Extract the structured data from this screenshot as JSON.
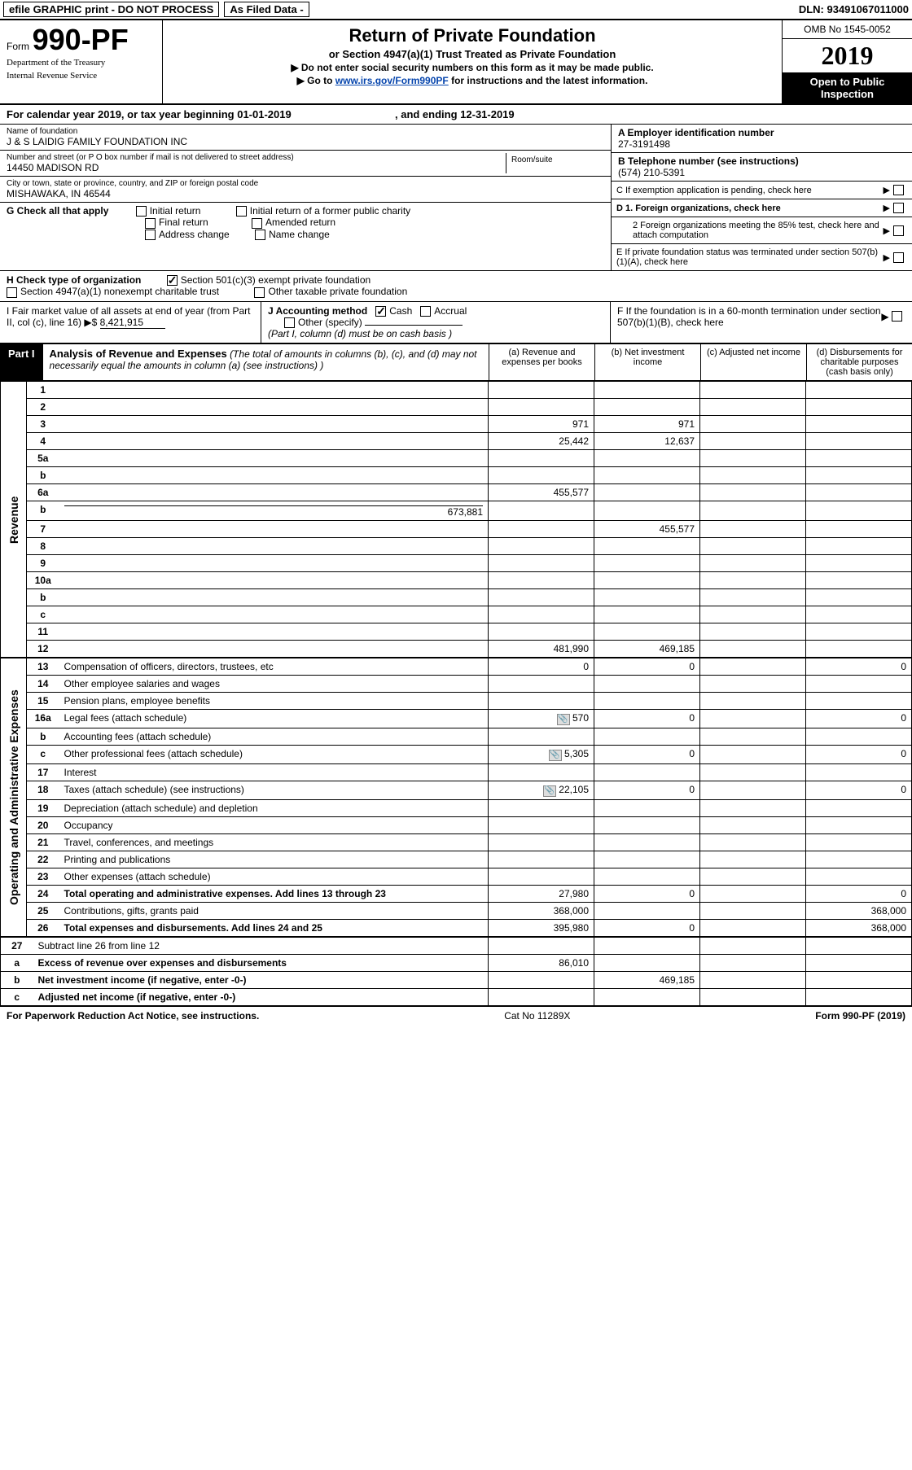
{
  "top_bar": {
    "left": "efile GRAPHIC print - DO NOT PROCESS",
    "mid": "As Filed Data -",
    "dln": "DLN: 93491067011000"
  },
  "header": {
    "form_prefix": "Form",
    "form_number": "990-PF",
    "dept1": "Department of the Treasury",
    "dept2": "Internal Revenue Service",
    "title": "Return of Private Foundation",
    "subtitle": "or Section 4947(a)(1) Trust Treated as Private Foundation",
    "instr1": "▶ Do not enter social security numbers on this form as it may be made public.",
    "instr2_pre": "▶ Go to ",
    "instr2_link": "www.irs.gov/Form990PF",
    "instr2_post": " for instructions and the latest information.",
    "omb": "OMB No 1545-0052",
    "year": "2019",
    "open": "Open to Public Inspection"
  },
  "cal": {
    "text_a": "For calendar year 2019, or tax year beginning 01-01-2019",
    "text_b": ", and ending 12-31-2019"
  },
  "org": {
    "name_lbl": "Name of foundation",
    "name": "J & S LAIDIG FAMILY FOUNDATION INC",
    "addr_lbl": "Number and street (or P O  box number if mail is not delivered to street address)",
    "addr": "14450 MADISON RD",
    "room_lbl": "Room/suite",
    "city_lbl": "City or town, state or province, country, and ZIP or foreign postal code",
    "city": "MISHAWAKA, IN  46544"
  },
  "right_box": {
    "a_lbl": "A Employer identification number",
    "a_val": "27-3191498",
    "b_lbl": "B Telephone number (see instructions)",
    "b_val": "(574) 210-5391",
    "c_txt": "C If exemption application is pending, check here",
    "d1": "D 1. Foreign organizations, check here",
    "d2": "2 Foreign organizations meeting the 85% test, check here and attach computation",
    "e": "E If private foundation status was terminated under section 507(b)(1)(A), check here",
    "f": "F If the foundation is in a 60-month termination under section 507(b)(1)(B), check here"
  },
  "checks": {
    "g_lbl": "G Check all that apply",
    "g_opts": [
      "Initial return",
      "Initial return of a former public charity",
      "Final return",
      "Amended return",
      "Address change",
      "Name change"
    ],
    "h_lbl": "H Check type of organization",
    "h_opt1": "Section 501(c)(3) exempt private foundation",
    "h_opt2": "Section 4947(a)(1) nonexempt charitable trust",
    "h_opt3": "Other taxable private foundation",
    "i_lbl": "I Fair market value of all assets at end of year (from Part II, col  (c), line 16)  ▶$",
    "i_val": "8,421,915",
    "j_lbl": "J Accounting method",
    "j_cash": "Cash",
    "j_accrual": "Accrual",
    "j_other": "Other (specify)",
    "j_note": "(Part I, column (d) must be on cash basis )"
  },
  "part1": {
    "badge": "Part I",
    "title": "Analysis of Revenue and Expenses",
    "note": "(The total of amounts in columns (b), (c), and (d) may not necessarily equal the amounts in column (a) (see instructions) )",
    "col_a": "(a)   Revenue and expenses per books",
    "col_b": "(b)   Net investment income",
    "col_c": "(c)  Adjusted net income",
    "col_d": "(d)  Disbursements for charitable purposes (cash basis only)"
  },
  "side_labels": {
    "rev": "Revenue",
    "exp": "Operating and Administrative Expenses"
  },
  "rows": [
    {
      "n": "1",
      "d": "",
      "a": "",
      "b": "",
      "c": ""
    },
    {
      "n": "2",
      "d": "",
      "a": "",
      "b": "",
      "c": ""
    },
    {
      "n": "3",
      "d": "",
      "a": "971",
      "b": "971",
      "c": ""
    },
    {
      "n": "4",
      "d": "",
      "a": "25,442",
      "b": "12,637",
      "c": ""
    },
    {
      "n": "5a",
      "d": "",
      "a": "",
      "b": "",
      "c": ""
    },
    {
      "n": "b",
      "d": "",
      "a": "",
      "b": "",
      "c": ""
    },
    {
      "n": "6a",
      "d": "",
      "a": "455,577",
      "b": "",
      "c": ""
    },
    {
      "n": "b",
      "d": "",
      "extra": "673,881",
      "a": "",
      "b": "",
      "c": ""
    },
    {
      "n": "7",
      "d": "",
      "a": "",
      "b": "455,577",
      "c": ""
    },
    {
      "n": "8",
      "d": "",
      "a": "",
      "b": "",
      "c": ""
    },
    {
      "n": "9",
      "d": "",
      "a": "",
      "b": "",
      "c": ""
    },
    {
      "n": "10a",
      "d": "",
      "a": "",
      "b": "",
      "c": ""
    },
    {
      "n": "b",
      "d": "",
      "a": "",
      "b": "",
      "c": ""
    },
    {
      "n": "c",
      "d": "",
      "a": "",
      "b": "",
      "c": ""
    },
    {
      "n": "11",
      "d": "",
      "a": "",
      "b": "",
      "c": ""
    },
    {
      "n": "12",
      "d": "",
      "bold": true,
      "a": "481,990",
      "b": "469,185",
      "c": ""
    }
  ],
  "exp_rows": [
    {
      "n": "13",
      "d": "0",
      "a": "0",
      "b": "0",
      "c": ""
    },
    {
      "n": "14",
      "d": "",
      "a": "",
      "b": "",
      "c": ""
    },
    {
      "n": "15",
      "d": "",
      "a": "",
      "b": "",
      "c": ""
    },
    {
      "n": "16a",
      "d": "0",
      "icon": true,
      "a": "570",
      "b": "0",
      "c": ""
    },
    {
      "n": "b",
      "d": "",
      "a": "",
      "b": "",
      "c": ""
    },
    {
      "n": "c",
      "d": "0",
      "icon": true,
      "a": "5,305",
      "b": "0",
      "c": ""
    },
    {
      "n": "17",
      "d": "",
      "a": "",
      "b": "",
      "c": ""
    },
    {
      "n": "18",
      "d": "0",
      "icon": true,
      "a": "22,105",
      "b": "0",
      "c": ""
    },
    {
      "n": "19",
      "d": "",
      "a": "",
      "b": "",
      "c": ""
    },
    {
      "n": "20",
      "d": "",
      "a": "",
      "b": "",
      "c": ""
    },
    {
      "n": "21",
      "d": "",
      "a": "",
      "b": "",
      "c": ""
    },
    {
      "n": "22",
      "d": "",
      "a": "",
      "b": "",
      "c": ""
    },
    {
      "n": "23",
      "d": "",
      "a": "",
      "b": "",
      "c": ""
    },
    {
      "n": "24",
      "d": "0",
      "bold": true,
      "a": "27,980",
      "b": "0",
      "c": ""
    },
    {
      "n": "25",
      "d": "368,000",
      "a": "368,000",
      "b": "",
      "c": ""
    },
    {
      "n": "26",
      "d": "368,000",
      "bold": true,
      "a": "395,980",
      "b": "0",
      "c": ""
    }
  ],
  "line27": [
    {
      "n": "27",
      "d": "",
      "a": "",
      "b": "",
      "c": ""
    },
    {
      "n": "a",
      "d": "",
      "bold": true,
      "a": "86,010",
      "b": "",
      "c": ""
    },
    {
      "n": "b",
      "d": "",
      "bold": true,
      "a": "",
      "b": "469,185",
      "c": ""
    },
    {
      "n": "c",
      "d": "",
      "bold": true,
      "a": "",
      "b": "",
      "c": ""
    }
  ],
  "footer": {
    "left": "For Paperwork Reduction Act Notice, see instructions.",
    "mid": "Cat No 11289X",
    "right": "Form 990-PF (2019)"
  }
}
